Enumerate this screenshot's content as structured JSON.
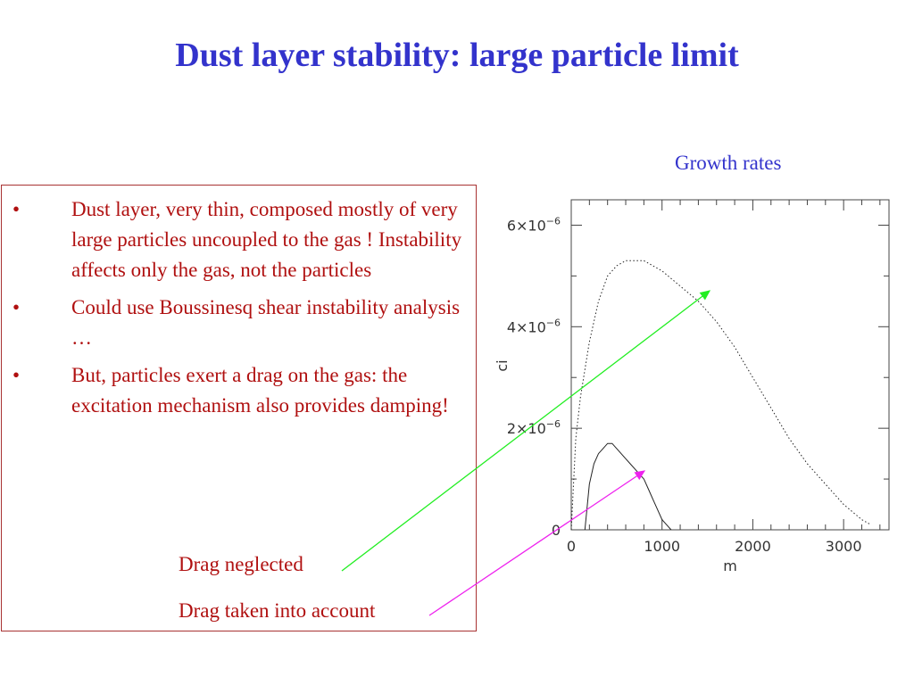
{
  "slide": {
    "title": "Dust layer stability: large particle limit",
    "bullets": [
      {
        "marker": "•",
        "text": "Dust layer, very thin, composed mostly of very large particles uncoupled to the gas ! Instability affects only the gas, not the particles"
      },
      {
        "marker": "•",
        "text": "Could use Boussinesq shear instability analysis …"
      },
      {
        "marker": "•",
        "text": "But, particles exert a drag on the gas: the excitation mechanism also provides damping!"
      }
    ],
    "labels": {
      "drag_neglected": "Drag neglected",
      "drag_taken": "Drag taken into account",
      "growth_rates": "Growth rates"
    },
    "arrow_colors": {
      "drag_neglected": "#22ee22",
      "drag_taken": "#ee22ee"
    }
  },
  "chart_data": {
    "type": "line",
    "xlabel": "m",
    "ylabel": "c_i",
    "xlim": [
      0,
      3500
    ],
    "ylim": [
      0,
      6.5e-06
    ],
    "x_ticks": [
      "0",
      "1000",
      "2000",
      "3000"
    ],
    "x_tick_values": [
      0,
      1000,
      2000,
      3000
    ],
    "y_ticks": [
      {
        "value": 0,
        "mantissa": "0",
        "exponent": ""
      },
      {
        "value": 2e-06,
        "mantissa": "2×10",
        "exponent": "−6"
      },
      {
        "value": 4e-06,
        "mantissa": "4×10",
        "exponent": "−6"
      },
      {
        "value": 6e-06,
        "mantissa": "6×10",
        "exponent": "−6"
      }
    ],
    "series": [
      {
        "style": "dotted",
        "x": [
          0,
          50,
          100,
          200,
          300,
          400,
          500,
          600,
          700,
          800,
          900,
          1000,
          1200,
          1400,
          1600,
          1800,
          2000,
          2200,
          2400,
          2600,
          2800,
          3000,
          3200,
          3300
        ],
        "y": [
          0.0,
          1.8e-06,
          2.6e-06,
          3.7e-06,
          4.5e-06,
          5e-06,
          5.2e-06,
          5.3e-06,
          5.3e-06,
          5.3e-06,
          5.2e-06,
          5.1e-06,
          4.8e-06,
          4.5e-06,
          4.1e-06,
          3.6e-06,
          3e-06,
          2.4e-06,
          1.8e-06,
          1.3e-06,
          9e-07,
          5e-07,
          2e-07,
          1e-07
        ]
      },
      {
        "style": "solid",
        "x": [
          150,
          200,
          250,
          300,
          350,
          400,
          450,
          500,
          550,
          600,
          650,
          700,
          750,
          800,
          850,
          900,
          950,
          1000,
          1050,
          1100
        ],
        "y": [
          0.0,
          9e-07,
          1.3e-06,
          1.5e-06,
          1.6e-06,
          1.7e-06,
          1.7e-06,
          1.6e-06,
          1.5e-06,
          1.4e-06,
          1.3e-06,
          1.2e-06,
          1.1e-06,
          1e-06,
          8e-07,
          6e-07,
          4e-07,
          2e-07,
          1e-07,
          0.0
        ]
      }
    ]
  }
}
